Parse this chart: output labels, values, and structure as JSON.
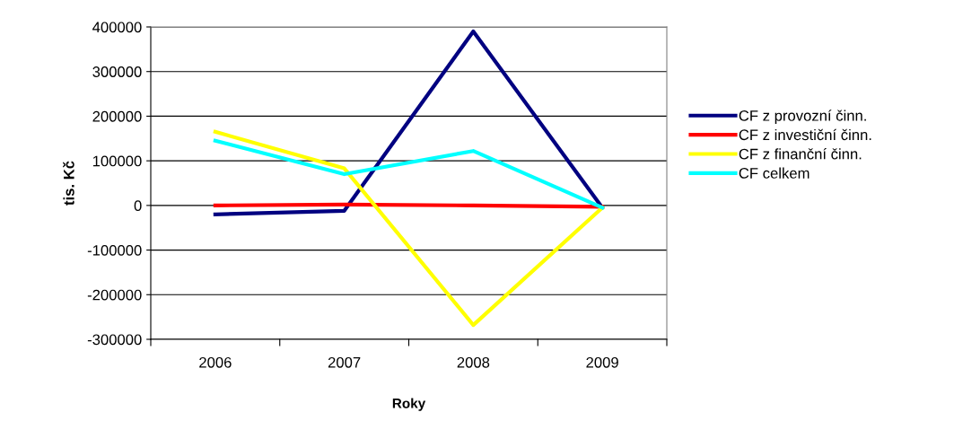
{
  "chart_data": {
    "type": "line",
    "xlabel": "Roky",
    "ylabel": "tis. Kč",
    "categories": [
      "2006",
      "2007",
      "2008",
      "2009"
    ],
    "series": [
      {
        "name": "CF z provozní činn.",
        "color": "#000080",
        "values": [
          -20000,
          -12000,
          390000,
          -5000
        ]
      },
      {
        "name": "CF z investiční činn.",
        "color": "#ff0000",
        "values": [
          0,
          2000,
          0,
          -3000
        ]
      },
      {
        "name": "CF z finanční činn.",
        "color": "#ffff00",
        "values": [
          165000,
          83000,
          -268000,
          -5000
        ]
      },
      {
        "name": "CF celkem",
        "color": "#00ffff",
        "values": [
          145000,
          70000,
          122000,
          -5000
        ]
      }
    ],
    "ylim": [
      -300000,
      400000
    ],
    "yticks": [
      -300000,
      -200000,
      -100000,
      0,
      100000,
      200000,
      300000,
      400000
    ],
    "grid": "y",
    "legend": "right",
    "marker": "none",
    "line_style": "solid"
  }
}
